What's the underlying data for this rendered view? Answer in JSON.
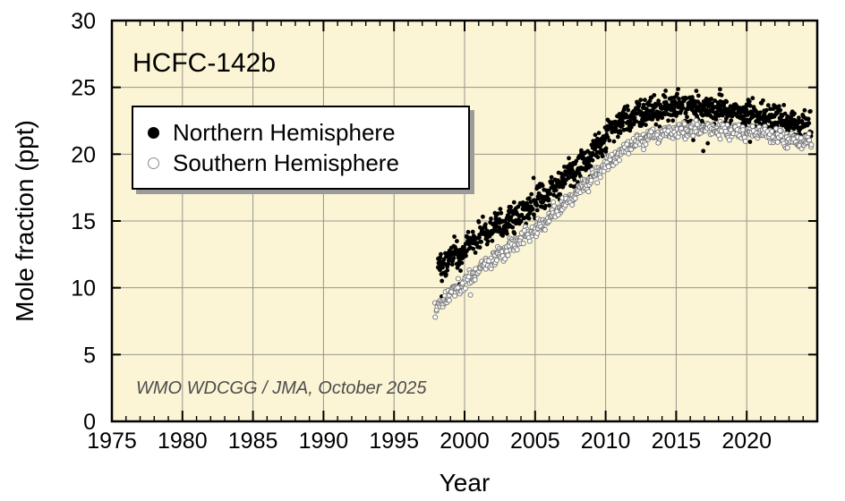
{
  "chart_data": {
    "type": "scatter",
    "title": "HCFC-142b",
    "xlabel": "Year",
    "ylabel": "Mole fraction (ppt)",
    "attribution": "WMO WDCGG / JMA, October 2025",
    "xlim": [
      1975,
      2025
    ],
    "ylim": [
      0,
      30
    ],
    "x_tick_values": [
      1975,
      1980,
      1985,
      1990,
      1995,
      2000,
      2005,
      2010,
      2015,
      2020
    ],
    "x_tick_labels": [
      "1975",
      "1980",
      "1985",
      "1990",
      "1995",
      "2000",
      "2005",
      "2010",
      "2015",
      "2020"
    ],
    "x_minor_step": 1,
    "y_tick_values": [
      0,
      5,
      10,
      15,
      20,
      25,
      30
    ],
    "y_tick_labels": [
      "0",
      "5",
      "10",
      "15",
      "20",
      "25",
      "30"
    ],
    "grid": {
      "x_values": [
        1980,
        1985,
        1990,
        1995,
        2000,
        2005,
        2010,
        2015,
        2020
      ],
      "y_values": [
        5,
        10,
        15,
        20,
        25
      ]
    },
    "colors": {
      "plot_bg": "#FBF5D5",
      "grid": "#96968a",
      "axis": "#000000",
      "nh_fill": "#000000",
      "sh_fill": "#ffffff",
      "sh_stroke": "#7a7a7a",
      "attribution_text": "#4d4d4d"
    },
    "legend_position": "upper-left",
    "series": [
      {
        "name": "Northern Hemisphere",
        "marker": "filled-circle",
        "fill": "#000000",
        "stroke": "none",
        "marker_radius": 2.4,
        "x_start": 1998.1,
        "x_end": 2024.6,
        "points_per_year": 21,
        "track_offsets": [
          0.25,
          -0.25
        ],
        "spread": 0.42,
        "seasonal_amplitude": 0.25,
        "outlier_fraction": 0.035,
        "outlier_scale": 3.0,
        "trend": [
          [
            1998.1,
            11.4
          ],
          [
            1999,
            12.3
          ],
          [
            2000,
            13.0
          ],
          [
            2001,
            13.8
          ],
          [
            2002,
            14.4
          ],
          [
            2003,
            15.0
          ],
          [
            2004,
            15.7
          ],
          [
            2005,
            16.4
          ],
          [
            2006,
            17.2
          ],
          [
            2007,
            18.1
          ],
          [
            2008,
            19.0
          ],
          [
            2009,
            20.1
          ],
          [
            2010,
            21.3
          ],
          [
            2011,
            22.3
          ],
          [
            2012,
            22.9
          ],
          [
            2013,
            23.2
          ],
          [
            2014,
            23.4
          ],
          [
            2015,
            23.5
          ],
          [
            2016,
            23.5
          ],
          [
            2017,
            23.45
          ],
          [
            2018,
            23.3
          ],
          [
            2019,
            23.15
          ],
          [
            2020,
            23.0
          ],
          [
            2021,
            22.8
          ],
          [
            2022,
            22.6
          ],
          [
            2023,
            22.3
          ],
          [
            2024,
            22.1
          ],
          [
            2024.6,
            22.0
          ]
        ]
      },
      {
        "name": "Southern Hemisphere",
        "marker": "open-circle",
        "fill": "#ffffff",
        "stroke": "#7a7a7a",
        "marker_radius": 2.5,
        "x_start": 1997.9,
        "x_end": 2024.6,
        "points_per_year": 14,
        "track_offsets": [
          0.12,
          -0.18
        ],
        "spread": 0.22,
        "seasonal_amplitude": 0.14,
        "outlier_fraction": 0.01,
        "outlier_scale": 2.0,
        "trend": [
          [
            1997.9,
            8.3
          ],
          [
            1999,
            9.6
          ],
          [
            2000,
            10.4
          ],
          [
            2001,
            11.4
          ],
          [
            2002,
            12.1
          ],
          [
            2003,
            13.0
          ],
          [
            2004,
            13.8
          ],
          [
            2005,
            14.4
          ],
          [
            2006,
            15.2
          ],
          [
            2007,
            16.2
          ],
          [
            2008,
            17.2
          ],
          [
            2009,
            18.2
          ],
          [
            2010,
            19.1
          ],
          [
            2011,
            20.1
          ],
          [
            2012,
            20.9
          ],
          [
            2013,
            21.3
          ],
          [
            2014,
            21.6
          ],
          [
            2015,
            21.8
          ],
          [
            2016,
            21.9
          ],
          [
            2017,
            22.0
          ],
          [
            2018,
            21.9
          ],
          [
            2019,
            21.85
          ],
          [
            2020,
            21.75
          ],
          [
            2021,
            21.6
          ],
          [
            2022,
            21.4
          ],
          [
            2023,
            21.2
          ],
          [
            2024,
            21.0
          ],
          [
            2024.6,
            20.9
          ]
        ]
      }
    ]
  }
}
